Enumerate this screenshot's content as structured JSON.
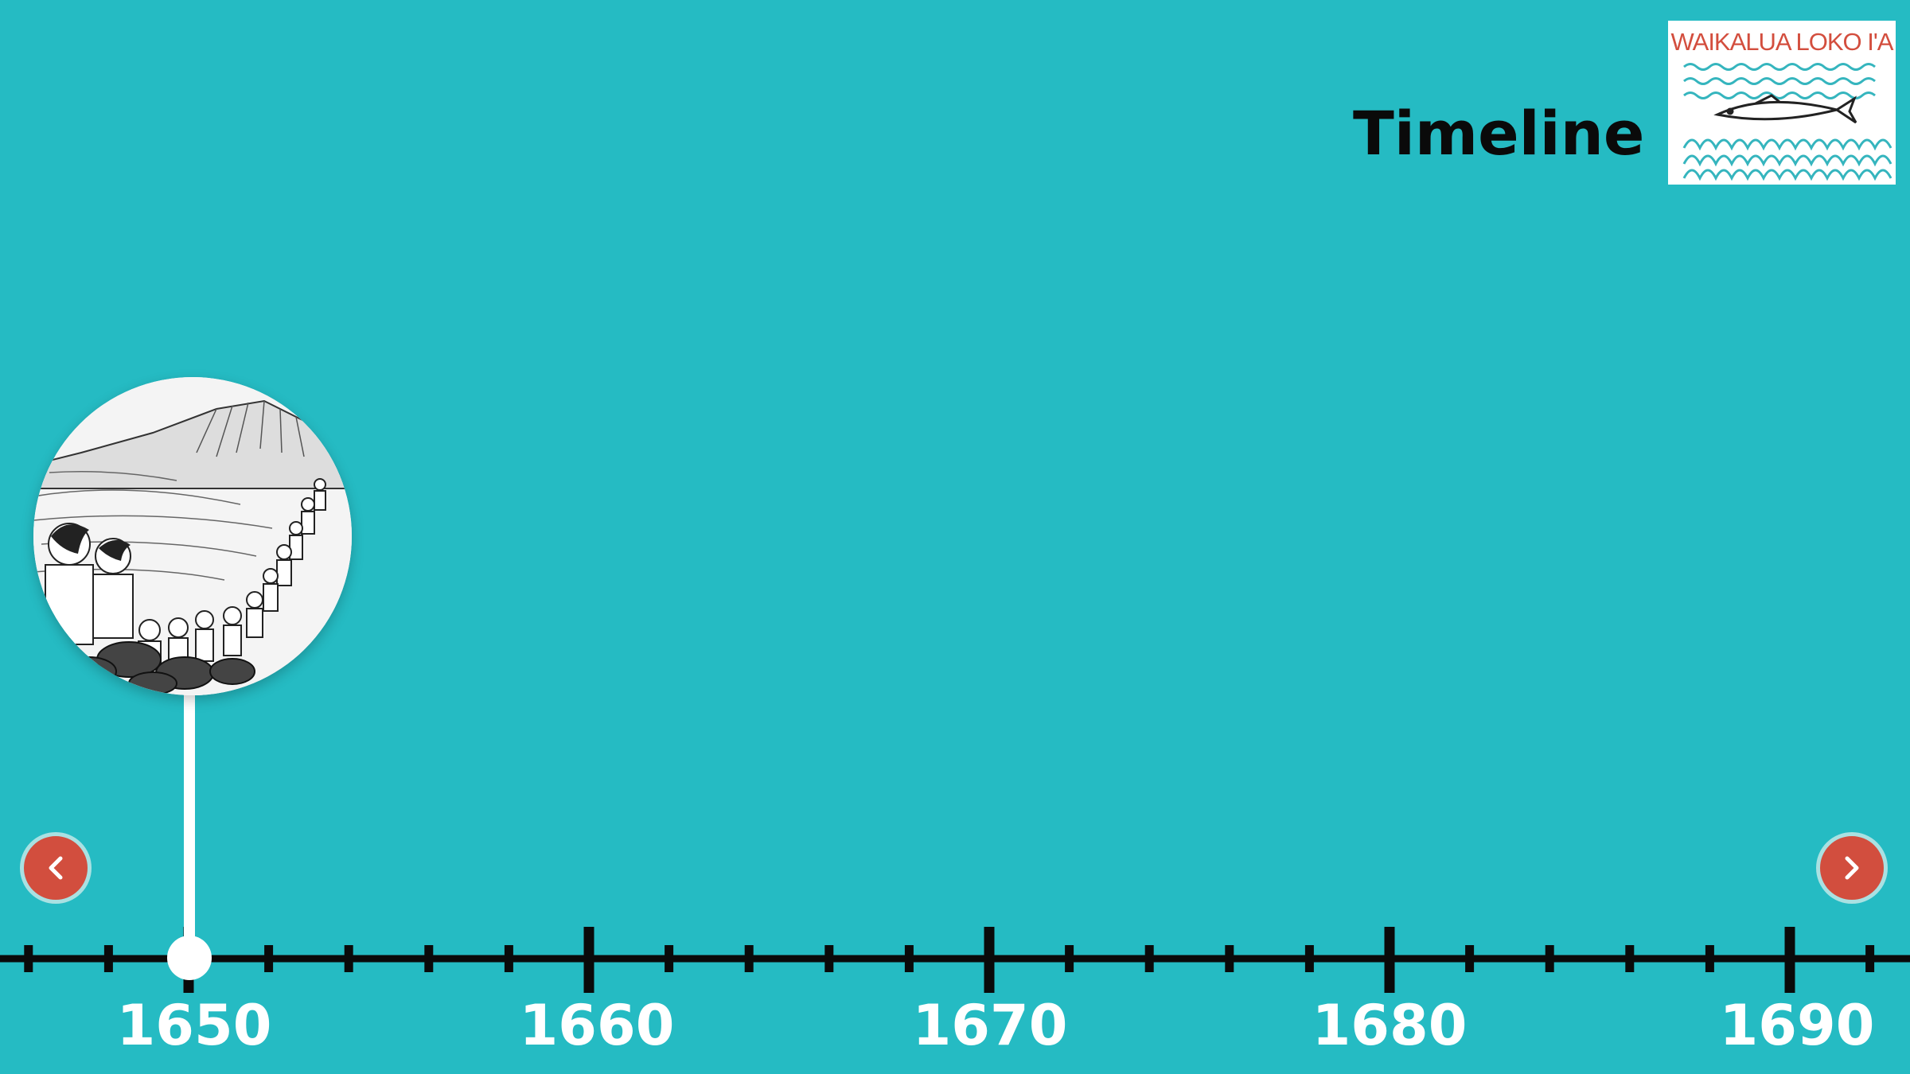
{
  "header": {
    "title": "Timeline"
  },
  "logo": {
    "text": "WAIKALUA LOKO I'A",
    "icon": "fish-waves-logo"
  },
  "navigation": {
    "prev_icon": "chevron-left-icon",
    "next_icon": "chevron-right-icon"
  },
  "event": {
    "icon": "illustration-hawaiians-passing-stones"
  },
  "timeline": {
    "years": [
      "1650",
      "1660",
      "1670",
      "1680",
      "1690"
    ]
  },
  "colors": {
    "background": "#25BBC3",
    "accent": "#D24E3E",
    "axis": "#0A0A0A",
    "label": "#FFFFFF"
  }
}
